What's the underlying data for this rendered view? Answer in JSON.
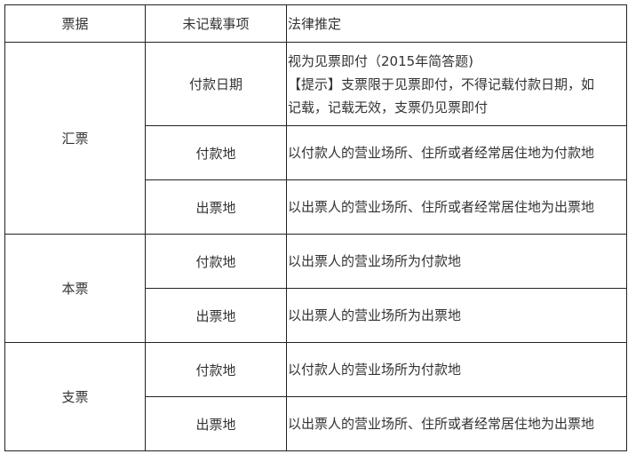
{
  "headers": [
    "票据",
    "未记载事项",
    "法律推定"
  ],
  "groups": [
    {
      "instrument": "汇票",
      "rows": [
        {
          "item": "付款日期",
          "lines": [
            "视为见票即付（2015年简答题)",
            "【提示】支票限于见票即付，不得记载付款日期，如",
            "记载，记载无效，支票仍见票即付"
          ]
        },
        {
          "item": "付款地",
          "lines": [
            "以付款人的营业场所、住所或者经常居住地为付款地"
          ]
        },
        {
          "item": "出票地",
          "lines": [
            "以出票人的营业场所、住所或者经常居住地为出票地"
          ]
        }
      ]
    },
    {
      "instrument": "本票",
      "rows": [
        {
          "item": "付款地",
          "lines": [
            "以出票人的营业场所为付款地"
          ]
        },
        {
          "item": "出票地",
          "lines": [
            "以出票人的营业场所为出票地"
          ]
        }
      ]
    },
    {
      "instrument": "支票",
      "rows": [
        {
          "item": "付款地",
          "lines": [
            "以付款人的营业场所为付款地"
          ]
        },
        {
          "item": "出票地",
          "lines": [
            "以出票人的营业场所、住所或者经常居住地为出票地"
          ]
        }
      ]
    }
  ]
}
